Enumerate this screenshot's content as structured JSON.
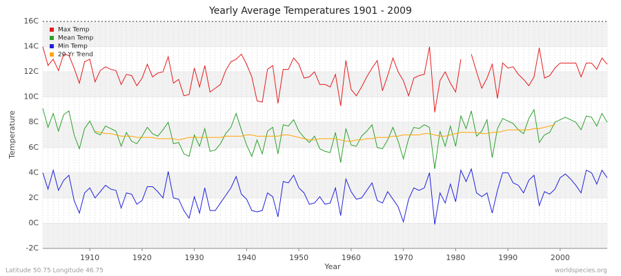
{
  "chart_data": {
    "type": "line",
    "title": "Yearly Average Temperatures 1901 - 2009",
    "x_label": "Year",
    "y_label": "Temperature",
    "footer_left": "Latitude 50.75 Longitude 46.75",
    "footer_right": "worldspecies.org",
    "x": [
      1901,
      1902,
      1903,
      1904,
      1905,
      1906,
      1907,
      1908,
      1909,
      1910,
      1911,
      1912,
      1913,
      1914,
      1915,
      1916,
      1917,
      1918,
      1919,
      1920,
      1921,
      1922,
      1923,
      1924,
      1925,
      1926,
      1927,
      1928,
      1929,
      1930,
      1931,
      1932,
      1933,
      1934,
      1935,
      1936,
      1937,
      1938,
      1939,
      1940,
      1941,
      1942,
      1943,
      1944,
      1945,
      1946,
      1947,
      1948,
      1949,
      1950,
      1951,
      1952,
      1953,
      1954,
      1955,
      1956,
      1957,
      1958,
      1959,
      1960,
      1961,
      1962,
      1963,
      1964,
      1965,
      1966,
      1967,
      1968,
      1969,
      1970,
      1971,
      1972,
      1973,
      1974,
      1975,
      1976,
      1977,
      1978,
      1979,
      1980,
      1981,
      1982,
      1983,
      1984,
      1985,
      1986,
      1987,
      1988,
      1989,
      1990,
      1991,
      1992,
      1993,
      1994,
      1995,
      1996,
      1997,
      1998,
      1999,
      2000,
      2001,
      2002,
      2003,
      2004,
      2005,
      2006,
      2007,
      2008,
      2009
    ],
    "xlim": [
      1901,
      2009
    ],
    "xticks": [
      1910,
      1920,
      1930,
      1940,
      1950,
      1960,
      1970,
      1980,
      1990,
      2000
    ],
    "ylim": [
      -2,
      16
    ],
    "yticks": [
      {
        "value": -2,
        "label": "-2C"
      },
      {
        "value": 0,
        "label": "0C"
      },
      {
        "value": 2,
        "label": "2C"
      },
      {
        "value": 4,
        "label": "4C"
      },
      {
        "value": 6,
        "label": "6C"
      },
      {
        "value": 8,
        "label": "8C"
      },
      {
        "value": 10,
        "label": "10C"
      },
      {
        "value": 12,
        "label": "12C"
      },
      {
        "value": 14,
        "label": "14C"
      },
      {
        "value": 16,
        "label": "16C"
      }
    ],
    "grid": true,
    "legend": "top-left",
    "series": [
      {
        "name": "Max Temp",
        "color": "#e41a1c",
        "values": [
          14.0,
          12.5,
          13.0,
          12.1,
          13.4,
          13.3,
          12.3,
          11.1,
          12.8,
          13.0,
          11.2,
          12.1,
          12.4,
          12.2,
          12.1,
          11.0,
          11.8,
          11.7,
          10.9,
          11.5,
          12.6,
          11.6,
          11.9,
          12.0,
          13.2,
          11.1,
          11.4,
          10.1,
          10.2,
          12.3,
          10.8,
          12.5,
          10.4,
          10.7,
          11.0,
          12.1,
          12.8,
          13.0,
          13.4,
          12.6,
          11.6,
          9.7,
          9.6,
          12.2,
          12.5,
          9.5,
          12.2,
          12.2,
          13.1,
          12.6,
          11.5,
          11.6,
          12.0,
          11.0,
          11.0,
          10.8,
          11.8,
          9.3,
          12.9,
          10.6,
          10.1,
          10.8,
          11.6,
          12.3,
          12.9,
          10.5,
          11.7,
          13.1,
          12.0,
          11.3,
          10.1,
          11.5,
          11.7,
          11.8,
          14.0,
          8.8,
          11.3,
          12.0,
          11.1,
          10.4,
          13.0,
          null,
          13.4,
          12.0,
          10.7,
          11.5,
          12.6,
          9.9,
          12.7,
          12.3,
          12.4,
          11.8,
          11.4,
          10.9,
          11.6,
          13.9,
          11.5,
          11.7,
          12.3,
          12.7,
          12.7,
          12.7,
          12.7,
          11.6,
          12.7,
          12.7,
          12.2,
          13.1,
          12.6
        ]
      },
      {
        "name": "Mean Temp",
        "color": "#2ca02c",
        "values": [
          9.1,
          7.6,
          8.7,
          7.3,
          8.6,
          8.9,
          7.0,
          5.9,
          7.5,
          8.1,
          7.2,
          7.0,
          7.7,
          7.5,
          7.3,
          6.1,
          7.2,
          6.5,
          6.3,
          6.9,
          7.6,
          7.1,
          6.9,
          7.4,
          8.0,
          6.3,
          6.4,
          5.5,
          5.3,
          7.0,
          6.1,
          7.5,
          5.7,
          5.8,
          6.3,
          7.1,
          7.6,
          8.7,
          7.4,
          6.2,
          5.3,
          6.6,
          5.5,
          7.3,
          7.6,
          5.5,
          7.8,
          7.7,
          8.2,
          7.3,
          6.8,
          6.4,
          6.9,
          5.9,
          5.7,
          5.6,
          7.2,
          4.8,
          7.5,
          6.2,
          6.1,
          6.9,
          7.3,
          7.8,
          6.0,
          5.9,
          6.6,
          7.6,
          6.5,
          5.1,
          6.7,
          7.6,
          7.5,
          7.8,
          7.6,
          4.3,
          7.3,
          6.1,
          7.7,
          6.1,
          8.5,
          7.5,
          8.9,
          6.9,
          7.3,
          8.2,
          5.2,
          7.5,
          8.3,
          8.1,
          7.9,
          7.4,
          7.1,
          8.3,
          9.0,
          6.4,
          7.0,
          7.2,
          8.0,
          8.2,
          8.4,
          8.2,
          8.0,
          7.4,
          8.5,
          8.4,
          7.7,
          8.7,
          8.0
        ]
      },
      {
        "name": "Min Temp",
        "color": "#1f1fdd",
        "values": [
          4.0,
          2.7,
          4.2,
          2.6,
          3.4,
          3.8,
          1.8,
          0.8,
          2.4,
          2.8,
          2.0,
          2.5,
          3.0,
          2.7,
          2.6,
          1.2,
          2.4,
          2.3,
          1.5,
          1.8,
          2.9,
          2.9,
          2.5,
          2.0,
          4.1,
          2.0,
          1.9,
          1.0,
          0.4,
          2.1,
          0.8,
          2.8,
          1.0,
          1.0,
          1.6,
          2.2,
          2.8,
          3.7,
          2.3,
          1.9,
          1.0,
          0.9,
          1.0,
          2.4,
          2.1,
          0.5,
          3.3,
          3.2,
          3.8,
          2.8,
          2.4,
          1.5,
          1.6,
          2.1,
          1.5,
          1.6,
          2.8,
          0.6,
          3.5,
          2.5,
          1.9,
          2.0,
          2.6,
          3.2,
          1.8,
          1.6,
          2.5,
          1.9,
          1.3,
          0.1,
          1.9,
          2.8,
          2.6,
          2.8,
          4.0,
          -0.1,
          2.4,
          1.6,
          3.1,
          1.7,
          4.2,
          3.3,
          4.3,
          2.4,
          2.1,
          2.4,
          0.8,
          2.6,
          4.0,
          4.0,
          3.2,
          3.0,
          2.4,
          3.4,
          3.8,
          1.4,
          2.5,
          2.3,
          2.7,
          3.6,
          3.9,
          3.5,
          3.0,
          2.4,
          4.2,
          4.0,
          3.1,
          4.2,
          3.6
        ]
      },
      {
        "name": "20 Yr Trend",
        "color": "#ffa500",
        "values": [
          null,
          null,
          null,
          null,
          null,
          null,
          null,
          null,
          null,
          null,
          7.3,
          7.2,
          7.1,
          7.1,
          7.0,
          6.9,
          6.9,
          6.9,
          6.8,
          6.8,
          6.8,
          6.8,
          6.7,
          6.7,
          6.7,
          6.7,
          6.6,
          6.7,
          6.8,
          6.8,
          6.8,
          6.8,
          6.8,
          6.8,
          6.8,
          6.9,
          6.9,
          6.9,
          6.9,
          7.0,
          7.0,
          6.9,
          6.9,
          6.9,
          6.9,
          6.9,
          7.0,
          7.0,
          6.9,
          6.8,
          6.7,
          6.6,
          6.6,
          6.7,
          6.7,
          6.7,
          6.7,
          6.6,
          6.5,
          6.5,
          6.6,
          6.6,
          6.7,
          6.7,
          6.8,
          6.8,
          6.8,
          6.9,
          6.9,
          7.0,
          7.0,
          7.0,
          7.0,
          7.1,
          7.1,
          7.0,
          6.9,
          6.9,
          7.0,
          7.1,
          7.2,
          7.2,
          7.2,
          7.2,
          7.1,
          7.1,
          7.2,
          7.2,
          7.3,
          7.4,
          7.4,
          7.4,
          7.4,
          7.4,
          7.5,
          7.5,
          7.6,
          7.7,
          7.8,
          null,
          null,
          null,
          null,
          null,
          null,
          null,
          null,
          null,
          null
        ]
      }
    ]
  }
}
